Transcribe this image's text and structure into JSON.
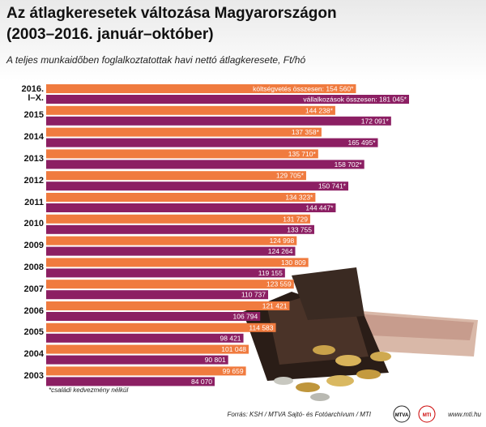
{
  "chart_data": {
    "type": "bar",
    "orientation": "horizontal",
    "title": [
      "Az átlagkeresetek változása Magyarországon",
      "(2003–2016. január–október)"
    ],
    "subtitle": "A teljes munkaidőben foglalkoztatottak havi nettó átlagkeresete, Ft/hó",
    "categories": [
      "2016. I–X.",
      "2015",
      "2014",
      "2013",
      "2012",
      "2011",
      "2010",
      "2009",
      "2008",
      "2007",
      "2006",
      "2005",
      "2004",
      "2003"
    ],
    "series": [
      {
        "name": "költségvetés összesen:",
        "color": "#f07b3f",
        "values": [
          154560,
          144238,
          137358,
          135710,
          129705,
          134323,
          131729,
          124998,
          130809,
          123559,
          121421,
          114583,
          101048,
          99659
        ],
        "value_labels": [
          "154 560*",
          "144 238*",
          "137 358*",
          "135 710*",
          "129 705*",
          "134 323*",
          "131 729",
          "124 998",
          "130 809",
          "123 559",
          "121 421",
          "114 583",
          "101 048",
          "99 659"
        ]
      },
      {
        "name": "vállalkozások összesen:",
        "color": "#8c1f63",
        "values": [
          181045,
          172091,
          165495,
          158702,
          150741,
          144447,
          133755,
          124264,
          119155,
          110737,
          106794,
          98421,
          90801,
          84070
        ],
        "value_labels": [
          "181 045*",
          "172 091*",
          "165 495*",
          "158 702*",
          "150 741*",
          "144 447*",
          "133 755",
          "124 264",
          "119 155",
          "110 737",
          "106 794",
          "98 421",
          "90 801",
          "84 070"
        ]
      }
    ],
    "footnote": "*családi kedvezmény nélkül",
    "source": "Forrás: KSH / MTVA Sajtó- és Fotóarchívum / MTI",
    "logos": [
      "MTVA",
      "MTI"
    ],
    "website": "www.mti.hu"
  }
}
